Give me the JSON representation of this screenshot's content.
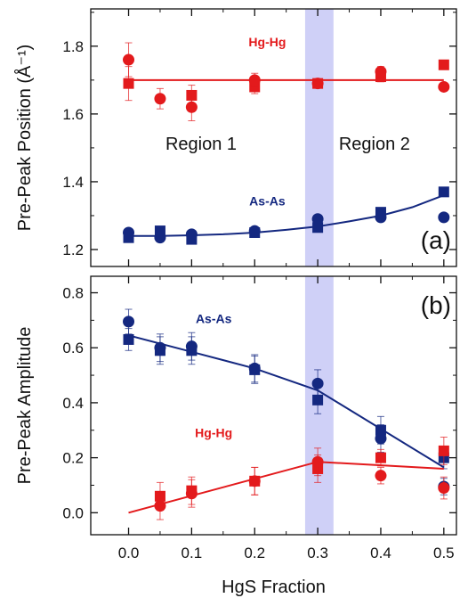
{
  "chart_data": [
    {
      "id": "a",
      "type": "scatter",
      "panel_label": "(a)",
      "ylabel": "Pre-Peak Position (Å⁻¹)",
      "ylim": [
        1.15,
        1.91
      ],
      "yticks": [
        1.2,
        1.4,
        1.6,
        1.8
      ],
      "xlim": [
        -0.06,
        0.52
      ],
      "grid": false,
      "region_labels": [
        {
          "text": "Region 1",
          "x": 0.115,
          "y": 1.495
        },
        {
          "text": "Region 2",
          "x": 0.39,
          "y": 1.495
        }
      ],
      "shaded_band": {
        "x0": 0.28,
        "x1": 0.325,
        "color": "#cfd0f7"
      },
      "series": [
        {
          "name": "Hg-Hg",
          "color": "#e31a1c",
          "label_pos": {
            "x": 0.22,
            "y": 1.8
          },
          "circles": {
            "x": [
              0.0,
              0.05,
              0.1,
              0.2,
              0.3,
              0.4,
              0.5
            ],
            "y": [
              1.76,
              1.645,
              1.62,
              1.7,
              1.69,
              1.725,
              1.68
            ],
            "err": [
              0.05,
              0.03,
              0.04,
              0.02,
              0.01,
              0.015,
              0.01
            ]
          },
          "squares": {
            "x": [
              0.0,
              0.1,
              0.2,
              0.3,
              0.4,
              0.5
            ],
            "y": [
              1.69,
              1.655,
              1.68,
              1.69,
              1.71,
              1.745
            ],
            "err": [
              0.05,
              0.03,
              0.02,
              0.01,
              0.015,
              0.01
            ]
          },
          "fit": {
            "x": [
              0.0,
              0.5
            ],
            "y": [
              1.7,
              1.7
            ]
          }
        },
        {
          "name": "As-As",
          "color": "#142880",
          "label_pos": {
            "x": 0.22,
            "y": 1.33
          },
          "circles": {
            "x": [
              0.0,
              0.05,
              0.1,
              0.2,
              0.3,
              0.4,
              0.5
            ],
            "y": [
              1.25,
              1.235,
              1.245,
              1.255,
              1.29,
              1.295,
              1.295
            ],
            "err": [
              0.01,
              0.01,
              0.01,
              0.01,
              0.01,
              0.01,
              0.01
            ]
          },
          "squares": {
            "x": [
              0.0,
              0.05,
              0.1,
              0.2,
              0.3,
              0.4,
              0.5
            ],
            "y": [
              1.235,
              1.255,
              1.23,
              1.25,
              1.265,
              1.31,
              1.37
            ],
            "err": [
              0.01,
              0.01,
              0.01,
              0.01,
              0.01,
              0.01,
              0.01
            ]
          },
          "fit": {
            "x": [
              0.0,
              0.05,
              0.1,
              0.15,
              0.2,
              0.25,
              0.3,
              0.35,
              0.4,
              0.45,
              0.5
            ],
            "y": [
              1.24,
              1.24,
              1.242,
              1.245,
              1.25,
              1.258,
              1.268,
              1.283,
              1.3,
              1.325,
              1.36
            ]
          }
        }
      ]
    },
    {
      "id": "b",
      "type": "scatter",
      "panel_label": "(b)",
      "ylabel": "Pre-Peak Amplitude",
      "xlabel": "HgS Fraction",
      "ylim": [
        -0.08,
        0.86
      ],
      "yticks": [
        0.0,
        0.2,
        0.4,
        0.6,
        0.8
      ],
      "xlim": [
        -0.06,
        0.52
      ],
      "xticks": [
        0.0,
        0.1,
        0.2,
        0.3,
        0.4,
        0.5
      ],
      "grid": false,
      "shaded_band": {
        "x0": 0.28,
        "x1": 0.325,
        "color": "#cfd0f7"
      },
      "series": [
        {
          "name": "As-As",
          "color": "#142880",
          "label_pos": {
            "x": 0.135,
            "y": 0.69
          },
          "circles": {
            "x": [
              0.0,
              0.05,
              0.1,
              0.2,
              0.3,
              0.4,
              0.5
            ],
            "y": [
              0.695,
              0.6,
              0.605,
              0.525,
              0.47,
              0.27,
              0.095
            ],
            "err": [
              0.045,
              0.05,
              0.05,
              0.05,
              0.05,
              0.05,
              0.03
            ]
          },
          "squares": {
            "x": [
              0.0,
              0.05,
              0.1,
              0.2,
              0.3,
              0.4,
              0.5
            ],
            "y": [
              0.63,
              0.59,
              0.59,
              0.52,
              0.41,
              0.3,
              0.2
            ],
            "err": [
              0.04,
              0.05,
              0.05,
              0.05,
              0.05,
              0.05,
              0.04
            ]
          },
          "fit": {
            "x": [
              0.0,
              0.1,
              0.2,
              0.3,
              0.5
            ],
            "y": [
              0.645,
              0.585,
              0.525,
              0.445,
              0.165
            ]
          }
        },
        {
          "name": "Hg-Hg",
          "color": "#e31a1c",
          "label_pos": {
            "x": 0.135,
            "y": 0.275
          },
          "circles": {
            "x": [
              0.05,
              0.1,
              0.2,
              0.3,
              0.4,
              0.5
            ],
            "y": [
              0.025,
              0.07,
              0.115,
              0.185,
              0.135,
              0.09
            ],
            "err": [
              0.05,
              0.05,
              0.05,
              0.05,
              0.03,
              0.04
            ]
          },
          "squares": {
            "x": [
              0.05,
              0.1,
              0.2,
              0.3,
              0.4,
              0.5
            ],
            "y": [
              0.06,
              0.08,
              0.115,
              0.16,
              0.2,
              0.225
            ],
            "err": [
              0.05,
              0.05,
              0.05,
              0.05,
              0.03,
              0.05
            ]
          },
          "fit": {
            "x": [
              0.0,
              0.3,
              0.5
            ],
            "y": [
              0.0,
              0.185,
              0.16
            ]
          }
        }
      ]
    }
  ]
}
